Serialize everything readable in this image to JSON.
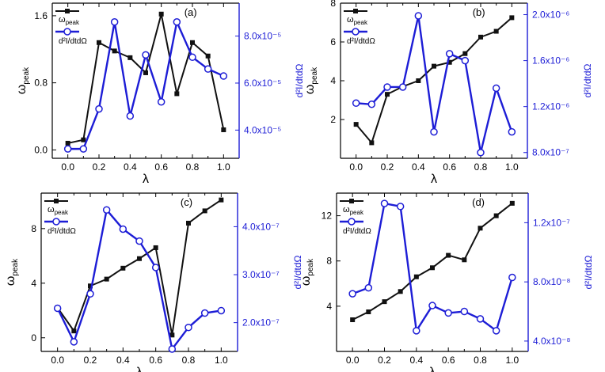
{
  "figure": {
    "colors": {
      "black_series": "#111111",
      "blue_series": "#1d1dd6",
      "axis": "#000000",
      "blue_axis": "#1d1dd6"
    },
    "shared": {
      "x_values": [
        0.0,
        0.1,
        0.2,
        0.3,
        0.4,
        0.5,
        0.6,
        0.7,
        0.8,
        0.9,
        1.0
      ],
      "x_ticks": [
        0.0,
        0.2,
        0.4,
        0.6,
        0.8,
        1.0
      ],
      "x_tick_labels": [
        "0.0",
        "0.2",
        "0.4",
        "0.6",
        "0.8",
        "1.0"
      ],
      "xlabel": "λ",
      "ylabel_main": "ω",
      "ylabel_sub": "peak",
      "ylabel_right": "d²I/dtdΩ",
      "legend_peak_main": "ω",
      "legend_peak_sub": "peak",
      "legend_emission": "d²I/dtdΩ"
    }
  },
  "chart_data": [
    {
      "type": "line",
      "panel_label": "(a)",
      "xlabel": "λ",
      "ylabel": "ω_peak",
      "ylabel_right": "d²I/dtdΩ",
      "x": [
        0.0,
        0.1,
        0.2,
        0.3,
        0.4,
        0.5,
        0.6,
        0.7,
        0.8,
        0.9,
        1.0
      ],
      "xlim": [
        -0.1,
        1.1
      ],
      "ylim_left": [
        -0.1,
        1.75
      ],
      "ylim_right": [
        2.8e-05,
        9.4e-05
      ],
      "left_ticks": [
        0.0,
        0.8,
        1.6
      ],
      "left_tick_labels": [
        "0.0",
        "0.8",
        "1.6"
      ],
      "right_ticks": [
        4e-05,
        6e-05,
        8e-05
      ],
      "right_tick_labels": [
        "4.0x10⁻⁵",
        "6.0x10⁻⁵",
        "8.0x10⁻⁵"
      ],
      "series": [
        {
          "name": "ω_peak",
          "axis": "left",
          "marker": "square",
          "values": [
            0.08,
            0.12,
            1.28,
            1.18,
            1.1,
            0.92,
            1.62,
            0.67,
            1.28,
            1.12,
            0.24
          ]
        },
        {
          "name": "d²I/dtdΩ",
          "axis": "right",
          "marker": "circle",
          "values": [
            3.2e-05,
            3.2e-05,
            4.9e-05,
            8.6e-05,
            4.6e-05,
            7.2e-05,
            5.2e-05,
            8.6e-05,
            7.1e-05,
            6.6e-05,
            6.3e-05
          ]
        }
      ]
    },
    {
      "type": "line",
      "panel_label": "(b)",
      "xlabel": "λ",
      "ylabel": "ω_peak",
      "ylabel_right": "d²I/dtdΩ",
      "x": [
        0.0,
        0.1,
        0.2,
        0.3,
        0.4,
        0.5,
        0.6,
        0.7,
        0.8,
        0.9,
        1.0
      ],
      "xlim": [
        -0.1,
        1.1
      ],
      "ylim_left": [
        0.0,
        8.0
      ],
      "ylim_right": [
        7.5e-07,
        2.1e-06
      ],
      "left_ticks": [
        2,
        4,
        6,
        8
      ],
      "left_tick_labels": [
        "2",
        "4",
        "6",
        "8"
      ],
      "right_ticks": [
        8e-07,
        1.2e-06,
        1.6e-06,
        2e-06
      ],
      "right_tick_labels": [
        "8.0x10⁻⁷",
        "1.2x10⁻⁶",
        "1.6x10⁻⁶",
        "2.0x10⁻⁶"
      ],
      "series": [
        {
          "name": "ω_peak",
          "axis": "left",
          "marker": "square",
          "values": [
            1.75,
            0.8,
            3.3,
            3.7,
            4.0,
            4.75,
            4.95,
            5.4,
            6.25,
            6.55,
            7.25
          ]
        },
        {
          "name": "d²I/dtdΩ",
          "axis": "right",
          "marker": "circle",
          "values": [
            1.23e-06,
            1.22e-06,
            1.37e-06,
            1.37e-06,
            1.99e-06,
            9.8e-07,
            1.66e-06,
            1.6e-06,
            8e-07,
            1.36e-06,
            9.8e-07
          ]
        }
      ]
    },
    {
      "type": "line",
      "panel_label": "(c)",
      "xlabel": "λ",
      "ylabel": "ω_peak",
      "ylabel_right": "d²I/dtdΩ",
      "x": [
        0.0,
        0.1,
        0.2,
        0.3,
        0.4,
        0.5,
        0.6,
        0.7,
        0.8,
        0.9,
        1.0
      ],
      "xlim": [
        -0.1,
        1.1
      ],
      "ylim_left": [
        -1.0,
        10.6
      ],
      "ylim_right": [
        1.4e-07,
        4.7e-07
      ],
      "left_ticks": [
        0,
        4,
        8
      ],
      "left_tick_labels": [
        "0",
        "4",
        "8"
      ],
      "right_ticks": [
        2e-07,
        3e-07,
        4e-07
      ],
      "right_tick_labels": [
        "2.0x10⁻⁷",
        "3.0x10⁻⁷",
        "4.0x10⁻⁷"
      ],
      "series": [
        {
          "name": "ω_peak",
          "axis": "left",
          "marker": "square",
          "values": [
            2.2,
            0.5,
            3.8,
            4.3,
            5.1,
            5.8,
            6.6,
            0.2,
            8.4,
            9.3,
            10.1
          ]
        },
        {
          "name": "d²I/dtdΩ",
          "axis": "right",
          "marker": "circle",
          "values": [
            2.3e-07,
            1.6e-07,
            2.6e-07,
            4.35e-07,
            3.95e-07,
            3.7e-07,
            3.15e-07,
            1.45e-07,
            1.9e-07,
            2.2e-07,
            2.25e-07
          ]
        }
      ]
    },
    {
      "type": "line",
      "panel_label": "(d)",
      "xlabel": "λ",
      "ylabel": "ω_peak",
      "ylabel_right": "d²I/dtdΩ",
      "x": [
        0.0,
        0.1,
        0.2,
        0.3,
        0.4,
        0.5,
        0.6,
        0.7,
        0.8,
        0.9,
        1.0
      ],
      "xlim": [
        -0.1,
        1.1
      ],
      "ylim_left": [
        0.0,
        14.0
      ],
      "ylim_right": [
        3.3e-08,
        1.4e-07
      ],
      "left_ticks": [
        4,
        8,
        12
      ],
      "left_tick_labels": [
        "4",
        "8",
        "12"
      ],
      "right_ticks": [
        4e-08,
        8e-08,
        1.2e-07
      ],
      "right_tick_labels": [
        "4.0x10⁻⁸",
        "8.0x10⁻⁸",
        "1.2x10⁻⁷"
      ],
      "series": [
        {
          "name": "ω_peak",
          "axis": "left",
          "marker": "square",
          "values": [
            2.8,
            3.5,
            4.4,
            5.3,
            6.6,
            7.4,
            8.5,
            8.1,
            10.9,
            12.0,
            13.1
          ]
        },
        {
          "name": "d²I/dtdΩ",
          "axis": "right",
          "marker": "circle",
          "values": [
            7.2e-08,
            7.6e-08,
            1.33e-07,
            1.31e-07,
            4.7e-08,
            6.4e-08,
            5.9e-08,
            6e-08,
            5.5e-08,
            4.7e-08,
            8.3e-08
          ]
        }
      ]
    }
  ]
}
